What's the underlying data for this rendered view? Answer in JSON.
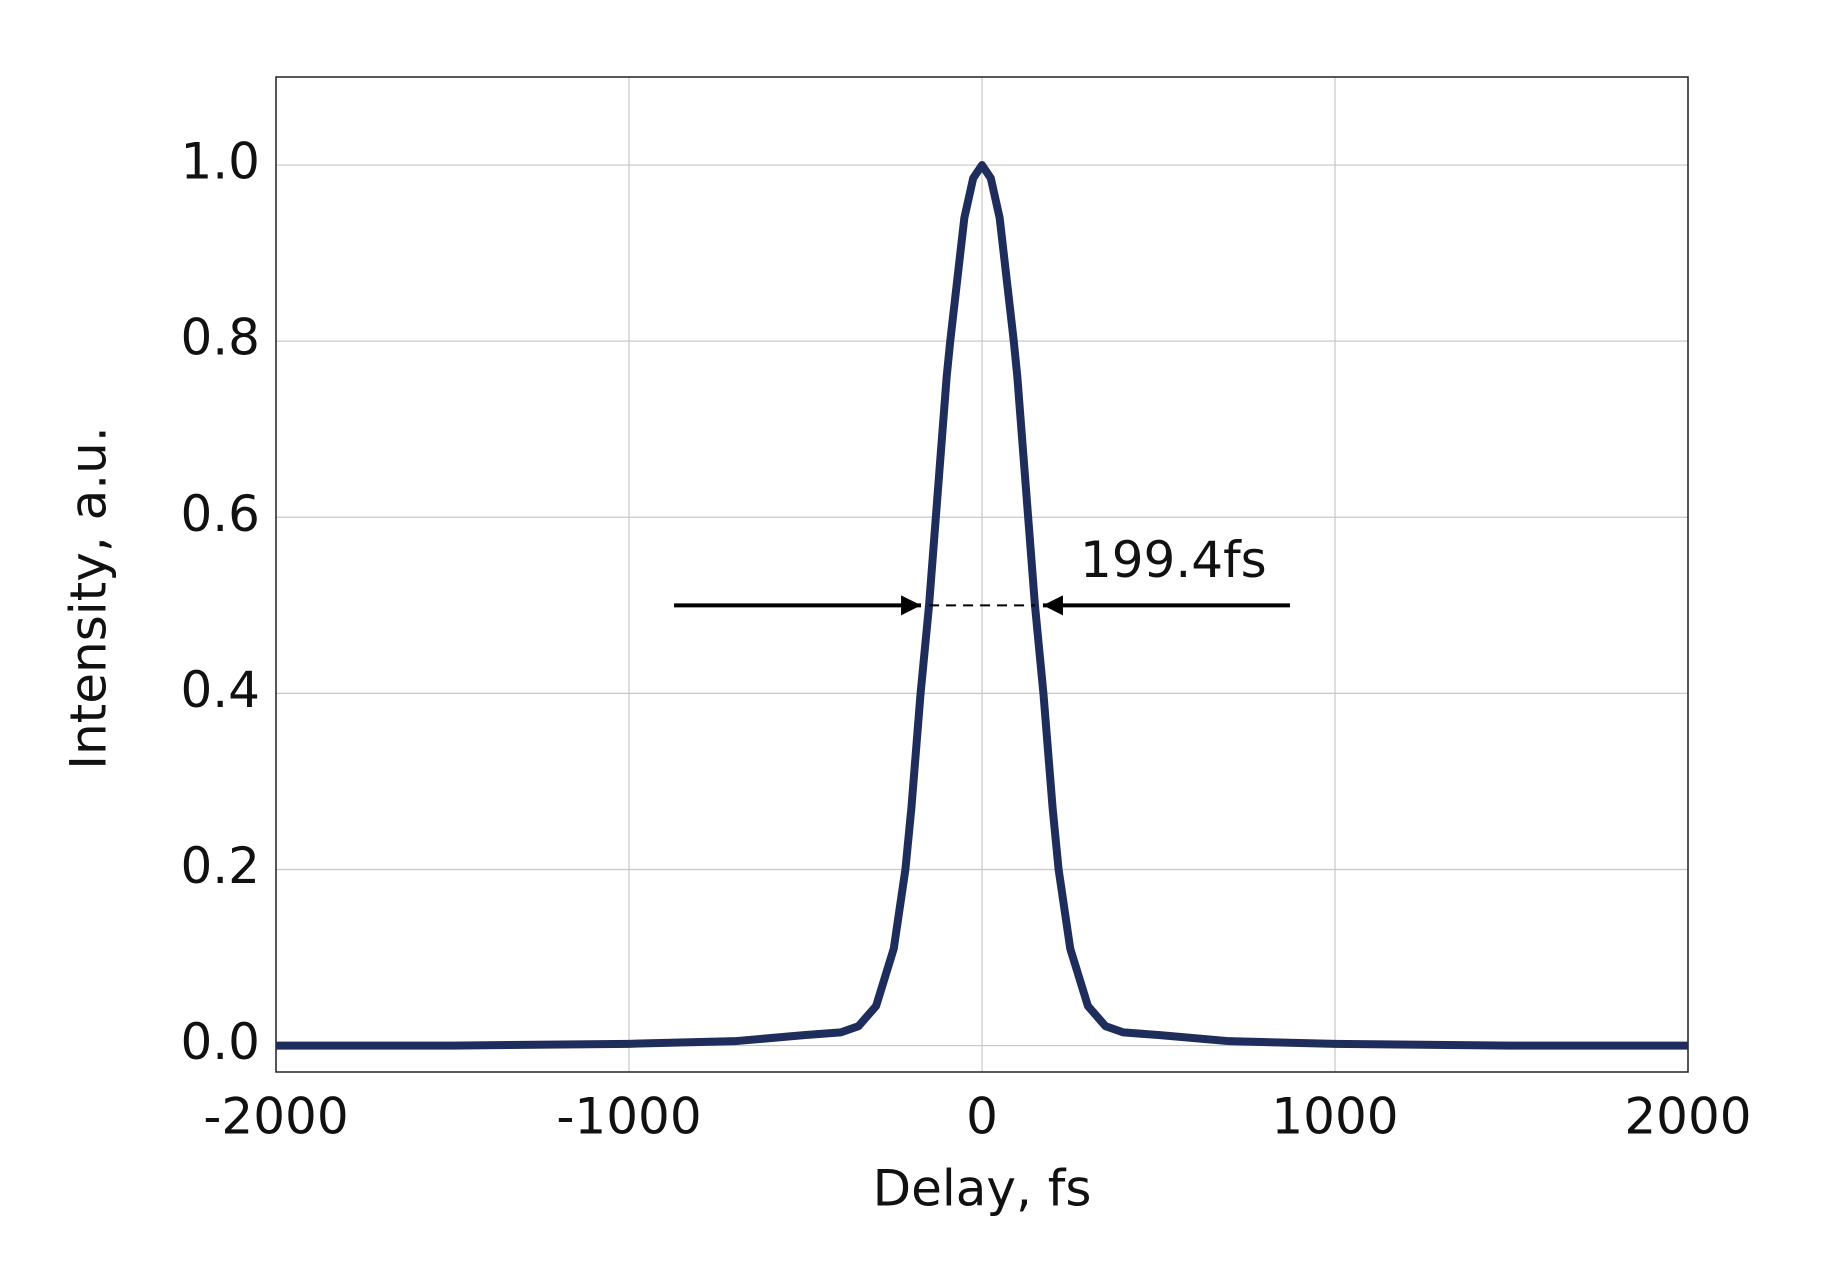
{
  "chart_data": {
    "type": "line",
    "x_label": "Delay, fs",
    "y_label": "Intensity, a.u.",
    "series": [
      {
        "name": "Intensity",
        "color": "#1f2d5c",
        "x": [
          -2000,
          -1500,
          -1000,
          -700,
          -500,
          -400,
          -350,
          -300,
          -250,
          -217,
          -200,
          -174,
          -150,
          -125,
          -100,
          -90,
          -50,
          -25,
          0,
          25,
          50,
          90,
          100,
          125,
          150,
          174,
          200,
          217,
          250,
          300,
          350,
          400,
          500,
          700,
          1000,
          1500,
          2000
        ],
        "values": [
          0,
          0,
          0.002,
          0.005,
          0.012,
          0.015,
          0.022,
          0.045,
          0.11,
          0.2,
          0.27,
          0.4,
          0.5,
          0.63,
          0.76,
          0.8,
          0.94,
          0.985,
          1.0,
          0.985,
          0.94,
          0.8,
          0.76,
          0.63,
          0.5,
          0.4,
          0.27,
          0.2,
          0.11,
          0.045,
          0.022,
          0.015,
          0.012,
          0.005,
          0.002,
          0,
          0
        ]
      }
    ],
    "annotation": "199.4fs",
    "xlim": [
      -2000,
      2000
    ],
    "xticks": [
      -2000,
      -1000,
      0,
      1000,
      2000
    ],
    "ylim": [
      -0.03,
      1.1
    ],
    "yticks": [
      {
        "value": 0,
        "label": "0.0"
      },
      0.2,
      0.4,
      0.6,
      0.8,
      {
        "value": 1,
        "label": "1.0"
      }
    ],
    "grid": true
  }
}
